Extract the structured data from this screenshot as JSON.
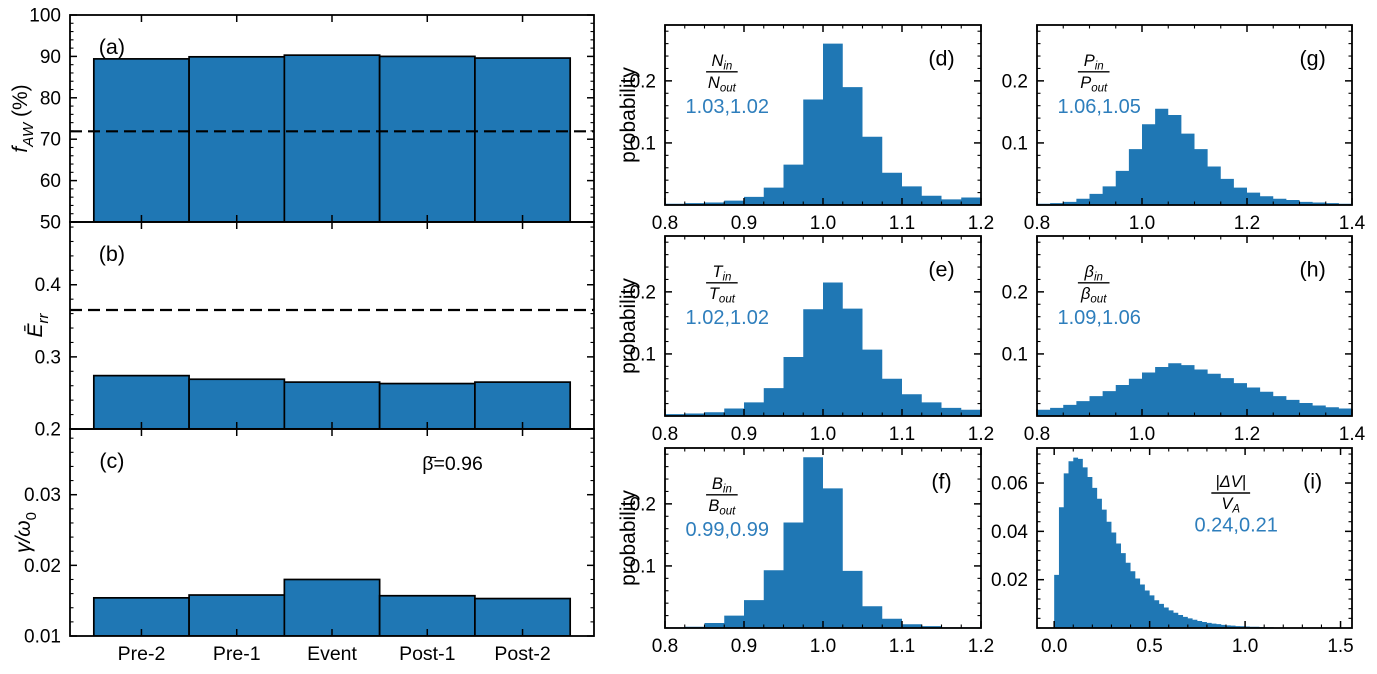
{
  "figure": {
    "colors": {
      "bar_fill": "#1f77b4",
      "bar_edge": "#000000",
      "annotation_blue": "#2e7ebc",
      "axis": "#000000",
      "background": "#ffffff"
    }
  },
  "chart_data": [
    {
      "id": "a",
      "type": "bar",
      "panel_label": "(a)",
      "categories": [
        "Pre-2",
        "Pre-1",
        "Event",
        "Post-1",
        "Post-2"
      ],
      "values": [
        89.4,
        89.9,
        90.3,
        90.0,
        89.6
      ],
      "ylim": [
        50,
        100
      ],
      "yticks": [
        50,
        60,
        70,
        80,
        90,
        100
      ],
      "ytick_labels": [
        "50",
        "60",
        "70",
        "80",
        "90",
        "100"
      ],
      "ytick_minor_step": 2,
      "dashed_hline": 71.9,
      "ylabel_segments": [
        {
          "text": "f",
          "italic": true
        },
        {
          "text": "AW",
          "italic": true,
          "sub": true
        },
        {
          "text": " (%)",
          "italic": false
        }
      ],
      "show_xtick_labels": false
    },
    {
      "id": "b",
      "type": "bar",
      "panel_label": "(b)",
      "categories": [
        "Pre-2",
        "Pre-1",
        "Event",
        "Post-1",
        "Post-2"
      ],
      "values": [
        0.274,
        0.269,
        0.265,
        0.263,
        0.265
      ],
      "ylim": [
        0.2,
        0.487
      ],
      "yticks": [
        0.2,
        0.3,
        0.4
      ],
      "ytick_labels": [
        "0.2",
        "0.3",
        "0.4"
      ],
      "ytick_minor_step": 0.02,
      "dashed_hline": 0.365,
      "ylabel_segments": [
        {
          "text": "Ē",
          "italic": true
        },
        {
          "text": "rr",
          "italic": true,
          "sub": true
        }
      ],
      "show_xtick_labels": false
    },
    {
      "id": "c",
      "type": "bar",
      "panel_label": "(c)",
      "categories": [
        "Pre-2",
        "Pre-1",
        "Event",
        "Post-1",
        "Post-2"
      ],
      "values": [
        0.0154,
        0.0158,
        0.018,
        0.0157,
        0.0153
      ],
      "ylim": [
        0.01,
        0.0393
      ],
      "yticks": [
        0.01,
        0.02,
        0.03
      ],
      "ytick_labels": [
        "0.01",
        "0.02",
        "0.03"
      ],
      "ytick_minor_step": 0.002,
      "annotation": "β̄=0.96",
      "ylabel_segments": [
        {
          "text": "γ/ω",
          "italic": true
        },
        {
          "text": "0",
          "italic": false,
          "sub": true
        }
      ],
      "show_xtick_labels": true
    },
    {
      "id": "d",
      "type": "histogram",
      "panel_label": "(d)",
      "ratio_label": {
        "num_base": "N",
        "num_sub": "in",
        "den_base": "N",
        "den_sub": "out"
      },
      "stat_label": "1.03,1.02",
      "ylabel": "probability",
      "bin_start": 0.8,
      "bin_width": 0.025,
      "heights": [
        0.002,
        0.003,
        0.004,
        0.007,
        0.013,
        0.028,
        0.065,
        0.17,
        0.26,
        0.19,
        0.11,
        0.052,
        0.03,
        0.015,
        0.009,
        0.012
      ],
      "xlim": [
        0.8,
        1.2
      ],
      "xticks": [
        0.8,
        0.9,
        1.0,
        1.1,
        1.2
      ],
      "xtick_labels": [
        "0.8",
        "0.9",
        "1.0",
        "1.1",
        "1.2"
      ],
      "xtick_minor_step": 0.025,
      "ylim": [
        0,
        0.29
      ],
      "yticks": [
        0.1,
        0.2
      ],
      "ytick_labels": [
        "0.1",
        "0.2"
      ],
      "ytick_minor_step": 0.02
    },
    {
      "id": "e",
      "type": "histogram",
      "panel_label": "(e)",
      "ratio_label": {
        "num_base": "T",
        "num_sub": "in",
        "den_base": "T",
        "den_sub": "out"
      },
      "stat_label": "1.02,1.02",
      "ylabel": "probability",
      "bin_start": 0.8,
      "bin_width": 0.025,
      "heights": [
        0.003,
        0.004,
        0.006,
        0.012,
        0.022,
        0.045,
        0.095,
        0.172,
        0.215,
        0.173,
        0.107,
        0.06,
        0.035,
        0.022,
        0.013,
        0.01
      ],
      "xlim": [
        0.8,
        1.2
      ],
      "xticks": [
        0.8,
        0.9,
        1.0,
        1.1,
        1.2
      ],
      "xtick_labels": [
        "0.8",
        "0.9",
        "1.0",
        "1.1",
        "1.2"
      ],
      "xtick_minor_step": 0.025,
      "ylim": [
        0,
        0.29
      ],
      "yticks": [
        0.1,
        0.2
      ],
      "ytick_labels": [
        "0.1",
        "0.2"
      ],
      "ytick_minor_step": 0.02
    },
    {
      "id": "f",
      "type": "histogram",
      "panel_label": "(f)",
      "ratio_label": {
        "num_base": "B",
        "num_sub": "in",
        "den_base": "B",
        "den_sub": "out"
      },
      "stat_label": "0.99,0.99",
      "ylabel": "probability",
      "bin_start": 0.8,
      "bin_width": 0.025,
      "heights": [
        0.001,
        0.002,
        0.008,
        0.02,
        0.045,
        0.093,
        0.17,
        0.275,
        0.225,
        0.092,
        0.035,
        0.015,
        0.006,
        0.003,
        0.001,
        0.001
      ],
      "xlim": [
        0.8,
        1.2
      ],
      "xticks": [
        0.8,
        0.9,
        1.0,
        1.1,
        1.2
      ],
      "xtick_labels": [
        "0.8",
        "0.9",
        "1.0",
        "1.1",
        "1.2"
      ],
      "xtick_minor_step": 0.025,
      "ylim": [
        0,
        0.29
      ],
      "yticks": [
        0.1,
        0.2
      ],
      "ytick_labels": [
        "0.1",
        "0.2"
      ],
      "ytick_minor_step": 0.02
    },
    {
      "id": "g",
      "type": "histogram",
      "panel_label": "(g)",
      "ratio_label": {
        "num_base": "P",
        "num_sub": "in",
        "den_base": "P",
        "den_sub": "out"
      },
      "stat_label": "1.06,1.05",
      "bin_start": 0.8,
      "bin_width": 0.025,
      "heights": [
        0.002,
        0.003,
        0.005,
        0.01,
        0.018,
        0.03,
        0.055,
        0.09,
        0.13,
        0.155,
        0.145,
        0.115,
        0.09,
        0.062,
        0.042,
        0.028,
        0.02,
        0.014,
        0.01,
        0.008,
        0.005,
        0.004,
        0.003,
        0.002
      ],
      "xlim": [
        0.8,
        1.4
      ],
      "xticks": [
        0.8,
        1.0,
        1.2,
        1.4
      ],
      "xtick_labels": [
        "0.8",
        "1.0",
        "1.2",
        "1.4"
      ],
      "xtick_minor_step": 0.05,
      "ylim": [
        0,
        0.29
      ],
      "yticks": [
        0.1,
        0.2
      ],
      "ytick_labels": [
        "0.1",
        "0.2"
      ],
      "ytick_minor_step": 0.02
    },
    {
      "id": "h",
      "type": "histogram",
      "panel_label": "(h)",
      "ratio_label": {
        "num_base": "β",
        "num_sub": "in",
        "den_base": "β",
        "den_sub": "out"
      },
      "stat_label": "1.09,1.06",
      "bin_start": 0.8,
      "bin_width": 0.025,
      "heights": [
        0.01,
        0.013,
        0.018,
        0.024,
        0.032,
        0.04,
        0.05,
        0.06,
        0.07,
        0.079,
        0.085,
        0.082,
        0.075,
        0.068,
        0.061,
        0.053,
        0.046,
        0.039,
        0.032,
        0.026,
        0.021,
        0.017,
        0.014,
        0.012
      ],
      "xlim": [
        0.8,
        1.4
      ],
      "xticks": [
        0.8,
        1.0,
        1.2,
        1.4
      ],
      "xtick_labels": [
        "0.8",
        "1.0",
        "1.2",
        "1.4"
      ],
      "xtick_minor_step": 0.05,
      "ylim": [
        0,
        0.29
      ],
      "yticks": [
        0.1,
        0.2
      ],
      "ytick_labels": [
        "0.1",
        "0.2"
      ],
      "ytick_minor_step": 0.02
    },
    {
      "id": "i",
      "type": "histogram",
      "panel_label": "(i)",
      "ratio_label": {
        "num_base": "|ΔV|",
        "num_sub": "",
        "den_base": "V",
        "den_sub": "A"
      },
      "stat_label": "0.24,0.21",
      "bin_start": 0.0,
      "bin_width": 0.025,
      "heights": [
        0.022,
        0.05,
        0.064,
        0.069,
        0.0705,
        0.07,
        0.0665,
        0.0625,
        0.058,
        0.0535,
        0.049,
        0.044,
        0.0395,
        0.035,
        0.031,
        0.027,
        0.0235,
        0.0205,
        0.018,
        0.0155,
        0.0135,
        0.0115,
        0.01,
        0.0085,
        0.0073,
        0.0063,
        0.0054,
        0.0046,
        0.004,
        0.0034,
        0.0029,
        0.0025,
        0.0021,
        0.0018,
        0.0016,
        0.0013,
        0.0011,
        0.001,
        0.0008,
        0.0007,
        0.0006,
        0.0005,
        0.0005,
        0.0004,
        0.0003,
        0.0003,
        0.0002,
        0.0002,
        0.0002,
        0.0001,
        0.0001,
        0.0001,
        0.0001,
        0.0001,
        0.0,
        0.0,
        0.0,
        0.0,
        0.0,
        0.0,
        0.0,
        0.0
      ],
      "xlim": [
        -0.09,
        1.56
      ],
      "xticks": [
        0.0,
        0.5,
        1.0,
        1.5
      ],
      "xtick_labels": [
        "0.0",
        "0.5",
        "1.0",
        "1.5"
      ],
      "xtick_minor_step": 0.1,
      "ylim": [
        0,
        0.0745
      ],
      "yticks": [
        0.02,
        0.04,
        0.06
      ],
      "ytick_labels": [
        "0.02",
        "0.04",
        "0.06"
      ],
      "ytick_minor_step": 0.004
    }
  ]
}
